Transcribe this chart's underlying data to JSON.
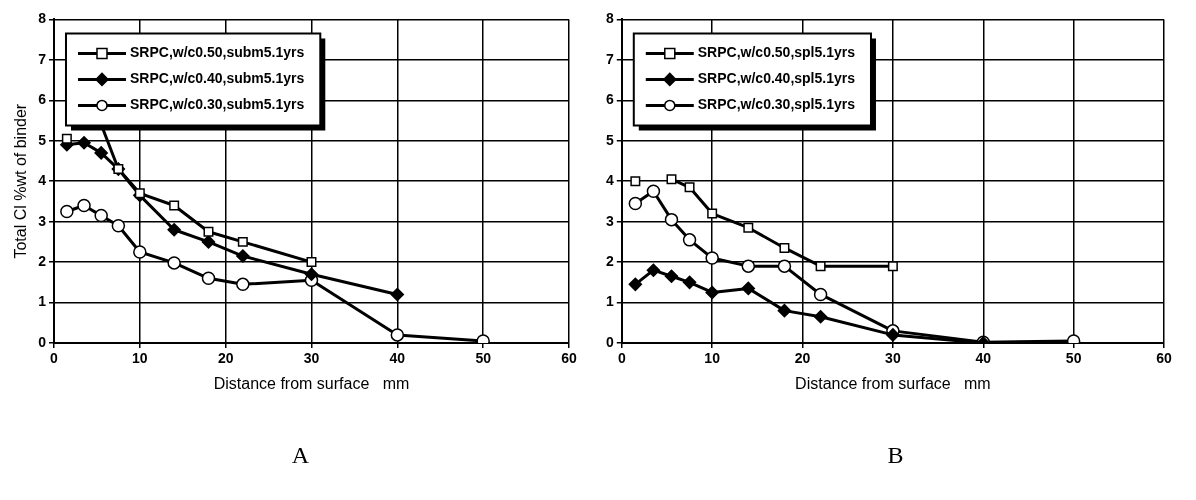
{
  "chart_data": [
    {
      "type": "line",
      "ylabel": "Total Cl %wt of binder",
      "xlabel": "Distance from surface   mm",
      "annotations": [
        "A"
      ],
      "xlim": [
        0,
        60
      ],
      "xticks": [
        0,
        10,
        20,
        30,
        40,
        50,
        60
      ],
      "ylim": [
        0,
        8
      ],
      "yticks": [
        0,
        1,
        2,
        3,
        4,
        5,
        6,
        7,
        8
      ],
      "grid": true,
      "legend": "top left",
      "line_style": "solid",
      "x": [
        1.5,
        3.5,
        5.5,
        7.5,
        10,
        14,
        18,
        22,
        30,
        40,
        50
      ],
      "series": [
        {
          "name": "SRPC,w/c0.50,subm5.1yrs",
          "color": "#000000",
          "marker": "square",
          "values": [
            5.05,
            null,
            5.4,
            4.3,
            3.7,
            3.4,
            2.75,
            2.5,
            2.0,
            null,
            null
          ]
        },
        {
          "name": "SRPC,w/c0.40,subm5.1yrs",
          "color": "#000000",
          "marker": "diamond",
          "values": [
            4.9,
            4.95,
            4.7,
            4.3,
            3.65,
            2.8,
            2.5,
            2.15,
            1.7,
            1.2,
            null
          ]
        },
        {
          "name": "SRPC,w/c0.30,subm5.1yrs",
          "color": "#000000",
          "marker": "circle",
          "values": [
            3.25,
            3.4,
            3.15,
            2.9,
            2.25,
            1.98,
            1.6,
            1.45,
            1.55,
            0.2,
            0.05
          ]
        }
      ]
    },
    {
      "type": "line",
      "xlabel": "Distance from surface   mm",
      "annotations": [
        "B"
      ],
      "xlim": [
        0,
        60
      ],
      "xticks": [
        0,
        10,
        20,
        30,
        40,
        50,
        60
      ],
      "ylim": [
        0,
        8
      ],
      "yticks": [
        0,
        1,
        2,
        3,
        4,
        5,
        6,
        7,
        8
      ],
      "grid": true,
      "legend": "top left",
      "line_style": "solid",
      "x": [
        1.5,
        3.5,
        5.5,
        7.5,
        10,
        14,
        18,
        22,
        30,
        40,
        50
      ],
      "series": [
        {
          "name": "SRPC,w/c0.50,spl5.1yrs",
          "color": "#000000",
          "marker": "square",
          "values": [
            4.0,
            null,
            4.05,
            3.85,
            3.2,
            2.85,
            2.35,
            1.9,
            1.9,
            null,
            null
          ]
        },
        {
          "name": "SRPC,w/c0.40,spl5.1yrs",
          "color": "#000000",
          "marker": "diamond",
          "values": [
            1.45,
            1.8,
            1.65,
            1.5,
            1.25,
            1.35,
            0.8,
            0.65,
            0.2,
            0.0,
            null
          ]
        },
        {
          "name": "SRPC,w/c0.30,spl5.1yrs",
          "color": "#000000",
          "marker": "circle",
          "values": [
            3.45,
            3.75,
            3.05,
            2.55,
            2.1,
            1.9,
            1.9,
            1.2,
            0.3,
            0.02,
            0.05
          ]
        }
      ]
    }
  ]
}
